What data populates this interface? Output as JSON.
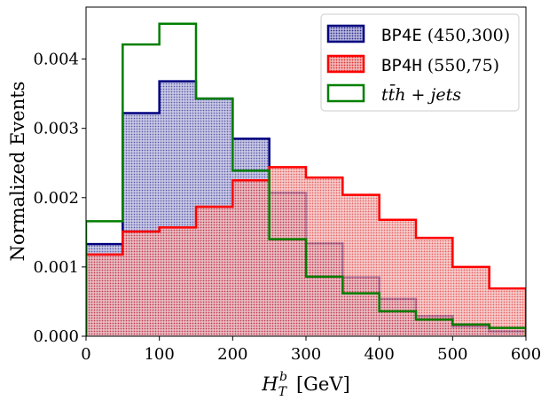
{
  "chart_data": {
    "type": "histogram",
    "xlabel": "H_T^b [GeV]",
    "xlabel_main": "H",
    "xlabel_sub": "T",
    "xlabel_sup": "b",
    "xlabel_unit": "[GeV]",
    "ylabel": "Normalized Events",
    "xlim": [
      0,
      600
    ],
    "ylim": [
      0,
      0.00475
    ],
    "xticks": [
      0,
      100,
      200,
      300,
      400,
      500,
      600
    ],
    "yticks": [
      0.0,
      0.001,
      0.002,
      0.003,
      0.004
    ],
    "ytick_labels": [
      "0.000",
      "0.001",
      "0.002",
      "0.003",
      "0.004"
    ],
    "bin_edges": [
      0,
      50,
      100,
      150,
      200,
      250,
      300,
      350,
      400,
      450,
      500,
      550,
      600
    ],
    "legend_position": "top-right",
    "series": [
      {
        "name": "BP4E (450,300)",
        "name_mono": "BP4E",
        "name_rest": "(450,300)",
        "color": "#00007f",
        "fill": "#8080c4",
        "values": [
          0.00133,
          0.00322,
          0.00368,
          0.00343,
          0.00285,
          0.00207,
          0.00134,
          0.00085,
          0.00054,
          0.00029,
          0.00014,
          7e-05
        ]
      },
      {
        "name": "BP4H (550,75)",
        "name_mono": "BP4H",
        "name_rest": "(550,75)",
        "color": "#ff0000",
        "fill": "#f0a0a0",
        "values": [
          0.00118,
          0.00151,
          0.00157,
          0.00187,
          0.00225,
          0.00244,
          0.00229,
          0.00204,
          0.00168,
          0.00142,
          0.001,
          0.00069
        ]
      },
      {
        "name": "ttbar h + jets",
        "name_display": "tt̄h + jets",
        "color": "#007f00",
        "fill": "none",
        "values": [
          0.00166,
          0.00421,
          0.00451,
          0.00343,
          0.00239,
          0.0014,
          0.00086,
          0.00062,
          0.00036,
          0.00024,
          0.00017,
          0.00012
        ]
      }
    ]
  }
}
